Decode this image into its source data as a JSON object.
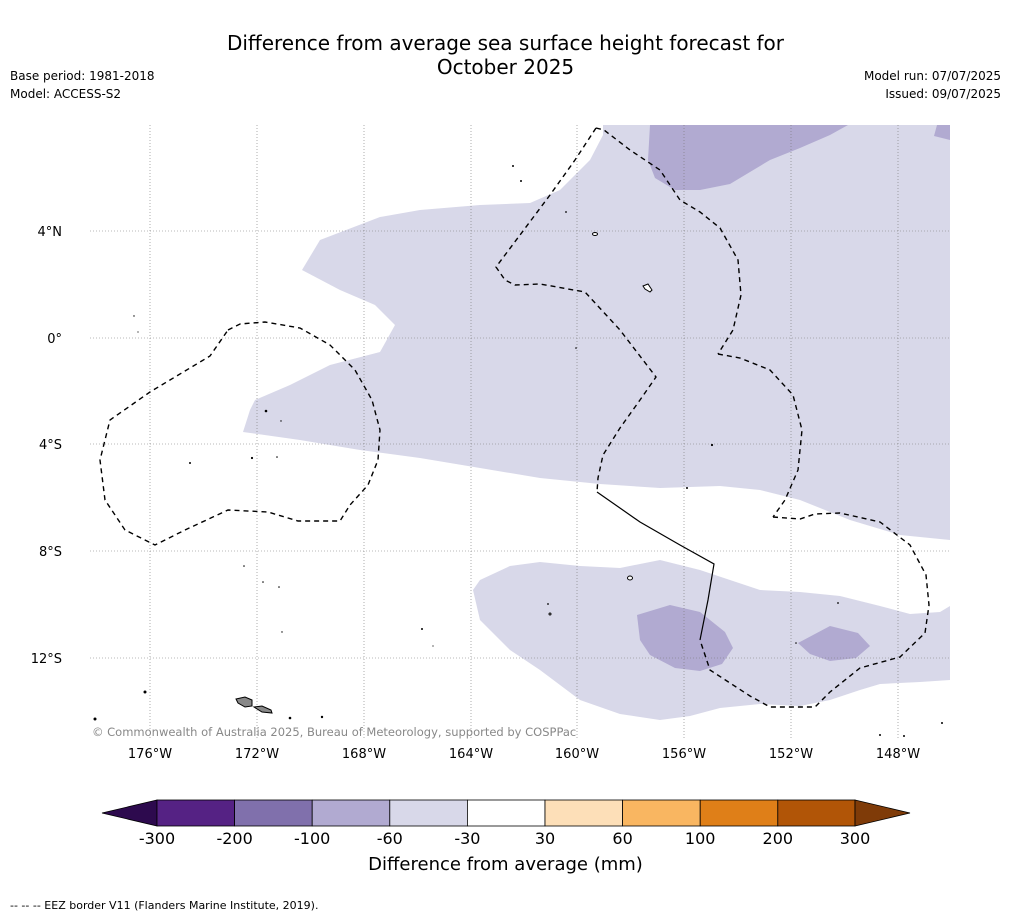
{
  "header": {
    "title_line1": "Difference from average sea surface height forecast for",
    "title_line2": "October 2025",
    "base_period": "Base period: 1981-2018",
    "model": "Model: ACCESS-S2",
    "model_run": "Model run: 07/07/2025",
    "issued": "Issued: 09/07/2025"
  },
  "map": {
    "lat_labels": [
      "4°N",
      "0°",
      "4°S",
      "8°S",
      "12°S"
    ],
    "lon_labels": [
      "176°W",
      "172°W",
      "168°W",
      "164°W",
      "160°W",
      "156°W",
      "152°W",
      "148°W"
    ],
    "copyright": "© Commonwealth of Australia 2025, Bureau of Meteorology, supported by COSPPac",
    "colors": {
      "band_minus30_minus60": "#d8d8e9",
      "band_minus60_minus100": "#b1aad1",
      "coast": "#000000",
      "land_fill": "#888888"
    }
  },
  "colorbar": {
    "ticks": [
      "-300",
      "-200",
      "-100",
      "-60",
      "-30",
      "30",
      "60",
      "100",
      "200",
      "300"
    ],
    "colors": [
      "#2d0a4e",
      "#552284",
      "#8070ac",
      "#b1aad1",
      "#d8d8e9",
      "#ffffff",
      "#fddfb8",
      "#f9b661",
      "#df7f18",
      "#b15507",
      "#7f3b08"
    ],
    "label": "Difference from average (mm)"
  },
  "footer": {
    "legend_text": "--  --  -- EEZ border V11 (Flanders Marine Institute, 2019)."
  }
}
